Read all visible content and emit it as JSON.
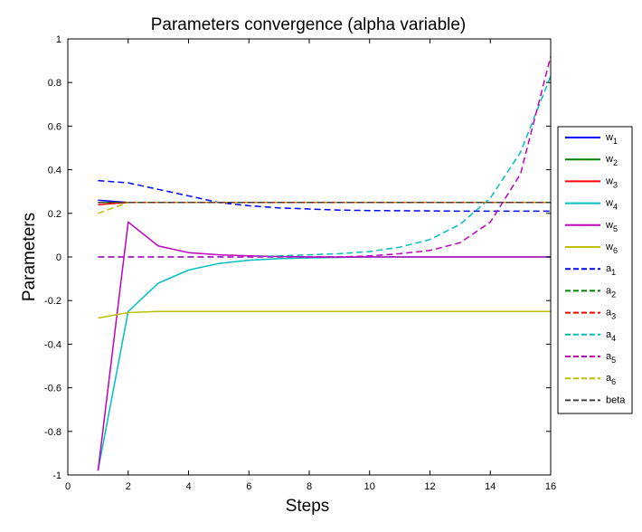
{
  "chart_data": {
    "type": "line",
    "title": "Parameters convergence (alpha variable)",
    "xlabel": "Steps",
    "ylabel": "Parameters",
    "xlim": [
      0,
      16
    ],
    "ylim": [
      -1,
      1
    ],
    "xticks": [
      0,
      2,
      4,
      6,
      8,
      10,
      12,
      14,
      16
    ],
    "yticks": [
      -1,
      -0.8,
      -0.6,
      -0.4,
      -0.2,
      0,
      0.2,
      0.4,
      0.6,
      0.8,
      1
    ],
    "grid": false,
    "legend_position": "right",
    "x": [
      1,
      2,
      3,
      4,
      5,
      6,
      7,
      8,
      9,
      10,
      11,
      12,
      13,
      14,
      15,
      16
    ],
    "series": [
      {
        "name": "w",
        "sub": "1",
        "color": "#0000ff",
        "dash": false,
        "values": [
          0.26,
          0.25,
          0.25,
          0.25,
          0.25,
          0.25,
          0.25,
          0.25,
          0.25,
          0.25,
          0.25,
          0.25,
          0.25,
          0.25,
          0.25,
          0.25
        ]
      },
      {
        "name": "w",
        "sub": "2",
        "color": "#008000",
        "dash": false,
        "values": [
          0.25,
          0.25,
          0.25,
          0.25,
          0.25,
          0.25,
          0.25,
          0.25,
          0.25,
          0.25,
          0.25,
          0.25,
          0.25,
          0.25,
          0.25,
          0.25
        ]
      },
      {
        "name": "w",
        "sub": "3",
        "color": "#ff0000",
        "dash": false,
        "values": [
          0.24,
          0.25,
          0.25,
          0.25,
          0.25,
          0.25,
          0.25,
          0.25,
          0.25,
          0.25,
          0.25,
          0.25,
          0.25,
          0.25,
          0.25,
          0.25
        ]
      },
      {
        "name": "w",
        "sub": "4",
        "color": "#00bfbf",
        "dash": false,
        "values": [
          -0.98,
          -0.25,
          -0.12,
          -0.06,
          -0.03,
          -0.015,
          -0.008,
          -0.004,
          -0.002,
          0,
          0,
          0,
          0,
          0,
          0,
          0
        ]
      },
      {
        "name": "w",
        "sub": "5",
        "color": "#bf00bf",
        "dash": false,
        "values": [
          -0.98,
          0.16,
          0.05,
          0.02,
          0.01,
          0.005,
          0.002,
          0,
          0,
          0,
          0,
          0,
          0,
          0,
          0,
          0
        ]
      },
      {
        "name": "w",
        "sub": "6",
        "color": "#bfbf00",
        "dash": false,
        "values": [
          -0.28,
          -0.255,
          -0.25,
          -0.25,
          -0.25,
          -0.25,
          -0.25,
          -0.25,
          -0.25,
          -0.25,
          -0.25,
          -0.25,
          -0.25,
          -0.25,
          -0.25,
          -0.25
        ]
      },
      {
        "name": "a",
        "sub": "1",
        "color": "#0000ff",
        "dash": true,
        "values": [
          0.35,
          0.34,
          0.31,
          0.28,
          0.25,
          0.235,
          0.225,
          0.22,
          0.215,
          0.213,
          0.212,
          0.211,
          0.21,
          0.21,
          0.21,
          0.21
        ]
      },
      {
        "name": "a",
        "sub": "2",
        "color": "#008000",
        "dash": true,
        "values": [
          0.25,
          0.25,
          0.25,
          0.25,
          0.25,
          0.25,
          0.25,
          0.25,
          0.25,
          0.25,
          0.25,
          0.25,
          0.25,
          0.25,
          0.25,
          0.25
        ]
      },
      {
        "name": "a",
        "sub": "3",
        "color": "#ff0000",
        "dash": true,
        "values": [
          0.25,
          0.25,
          0.25,
          0.25,
          0.25,
          0.25,
          0.25,
          0.25,
          0.25,
          0.25,
          0.25,
          0.25,
          0.25,
          0.25,
          0.25,
          0.25
        ]
      },
      {
        "name": "a",
        "sub": "4",
        "color": "#00bfbf",
        "dash": true,
        "values": [
          0,
          0,
          0,
          0,
          0,
          0,
          0.005,
          0.01,
          0.015,
          0.025,
          0.045,
          0.08,
          0.15,
          0.27,
          0.48,
          0.83
        ]
      },
      {
        "name": "a",
        "sub": "5",
        "color": "#bf00bf",
        "dash": true,
        "values": [
          0,
          0,
          0,
          0,
          0,
          0,
          0,
          0,
          0,
          0.005,
          0.015,
          0.03,
          0.065,
          0.16,
          0.38,
          0.92
        ]
      },
      {
        "name": "a",
        "sub": "6",
        "color": "#bfbf00",
        "dash": true,
        "values": [
          0.2,
          0.25,
          0.25,
          0.25,
          0.25,
          0.25,
          0.25,
          0.25,
          0.25,
          0.25,
          0.25,
          0.25,
          0.25,
          0.25,
          0.25,
          0.25
        ]
      },
      {
        "name": "beta",
        "sub": "",
        "color": "#404040",
        "dash": true,
        "values": [
          0.25,
          0.25,
          0.25,
          0.25,
          0.25,
          0.25,
          0.25,
          0.25,
          0.25,
          0.25,
          0.25,
          0.25,
          0.25,
          0.25,
          0.25,
          0.25
        ]
      }
    ]
  }
}
